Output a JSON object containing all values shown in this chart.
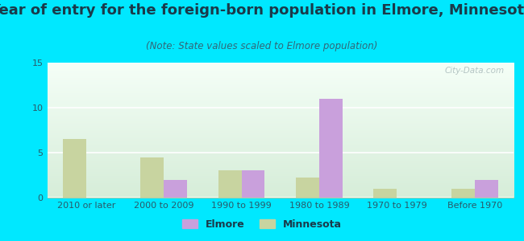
{
  "title": "Year of entry for the foreign-born population in Elmore, Minnesota",
  "subtitle": "(Note: State values scaled to Elmore population)",
  "categories": [
    "2010 or later",
    "2000 to 2009",
    "1990 to 1999",
    "1980 to 1989",
    "1970 to 1979",
    "Before 1970"
  ],
  "elmore_values": [
    0,
    2,
    3,
    11,
    0,
    2
  ],
  "minnesota_values": [
    6.5,
    4.5,
    3,
    2.2,
    1,
    1
  ],
  "elmore_color": "#c9a0dc",
  "minnesota_color": "#c8d4a0",
  "background_outer": "#00e8ff",
  "background_inner_topleft": "#f5fffa",
  "background_inner_bottomright": "#ddeedd",
  "ylim": [
    0,
    15
  ],
  "yticks": [
    0,
    5,
    10,
    15
  ],
  "bar_width": 0.3,
  "title_fontsize": 13,
  "subtitle_fontsize": 8.5,
  "legend_fontsize": 9,
  "axis_tick_fontsize": 8,
  "watermark": "City-Data.com"
}
